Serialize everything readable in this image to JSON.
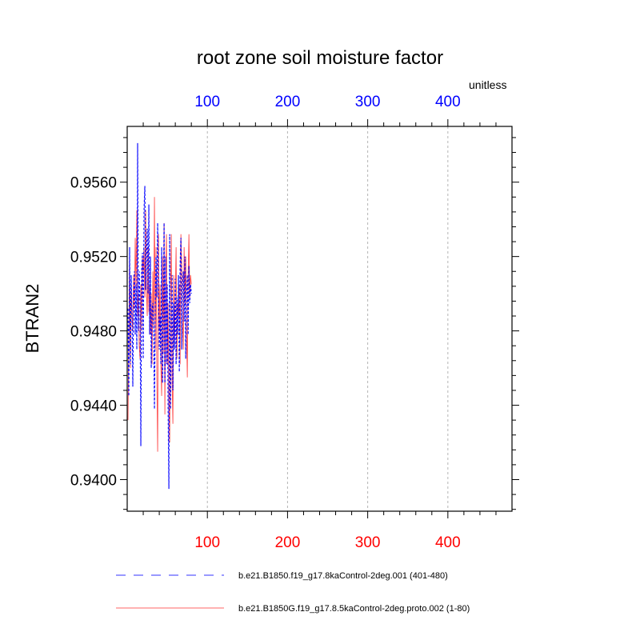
{
  "chart_data": {
    "type": "line",
    "title": "root zone soil moisture factor",
    "ylabel": "BTRAN2",
    "units_label": "unitless",
    "xlim": [
      0,
      480
    ],
    "ylim": [
      0.9383,
      0.959
    ],
    "yticks": [
      0.94,
      0.944,
      0.948,
      0.952,
      0.956
    ],
    "ytick_labels": [
      "0.9400",
      "0.9440",
      "0.9480",
      "0.9520",
      "0.9560"
    ],
    "bottom_xticks": [
      100,
      200,
      300,
      400
    ],
    "bottom_xtick_labels": [
      "100",
      "200",
      "300",
      "400"
    ],
    "top_xticks": [
      100,
      200,
      300,
      400
    ],
    "top_xtick_labels": [
      "100",
      "200",
      "300",
      "400"
    ],
    "grid_x": true,
    "legend_position": "bottom",
    "series": [
      {
        "name": "b.e21.B1850.f19_g17.8kaControl-2deg.001 (401-480)",
        "color": "#0000ff",
        "dash": "dashed",
        "values": [
          0.9492,
          0.9445,
          0.9525,
          0.9462,
          0.951,
          0.9488,
          0.945,
          0.95,
          0.9512,
          0.9478,
          0.9505,
          0.947,
          0.9581,
          0.948,
          0.9512,
          0.9495,
          0.9418,
          0.9512,
          0.9522,
          0.9465,
          0.9545,
          0.9558,
          0.9502,
          0.952,
          0.9535,
          0.95,
          0.9548,
          0.9478,
          0.952,
          0.946,
          0.9492,
          0.9495,
          0.948,
          0.9438,
          0.9495,
          0.952,
          0.9498,
          0.9538,
          0.9505,
          0.947,
          0.9488,
          0.9462,
          0.9525,
          0.9452,
          0.9482,
          0.9538,
          0.9452,
          0.952,
          0.9462,
          0.9505,
          0.944,
          0.9395,
          0.9532,
          0.9438,
          0.9478,
          0.951,
          0.9448,
          0.9495,
          0.947,
          0.9508,
          0.9462,
          0.9498,
          0.9478,
          0.951,
          0.9458,
          0.9515,
          0.953,
          0.947,
          0.9505,
          0.9512,
          0.9485,
          0.952,
          0.9465,
          0.95,
          0.951,
          0.9478,
          0.9515,
          0.9495,
          0.9505,
          0.95
        ]
      },
      {
        "name": "b.e21.B1850G.f19_g17.8.5kaControl-2deg.proto.002 (1-80)",
        "color": "#ff0000",
        "dash": "solid",
        "values": [
          0.9432,
          0.9475,
          0.952,
          0.946,
          0.9505,
          0.9488,
          0.948,
          0.951,
          0.9492,
          0.953,
          0.9502,
          0.9545,
          0.9488,
          0.95,
          0.9472,
          0.9465,
          0.9505,
          0.948,
          0.952,
          0.9512,
          0.9525,
          0.9498,
          0.9545,
          0.9502,
          0.9488,
          0.9525,
          0.949,
          0.9505,
          0.9478,
          0.95,
          0.9462,
          0.9512,
          0.9482,
          0.9552,
          0.947,
          0.9525,
          0.9455,
          0.9415,
          0.9532,
          0.948,
          0.9505,
          0.9462,
          0.9445,
          0.952,
          0.9468,
          0.9538,
          0.9435,
          0.951,
          0.9532,
          0.9462,
          0.9495,
          0.944,
          0.942,
          0.9498,
          0.9532,
          0.9452,
          0.943,
          0.951,
          0.9472,
          0.95,
          0.9525,
          0.9465,
          0.9495,
          0.9488,
          0.9505,
          0.9462,
          0.9532,
          0.9515,
          0.9485,
          0.947,
          0.9525,
          0.9495,
          0.952,
          0.948,
          0.9455,
          0.951,
          0.9532,
          0.9498,
          0.951,
          0.9505
        ]
      }
    ]
  }
}
